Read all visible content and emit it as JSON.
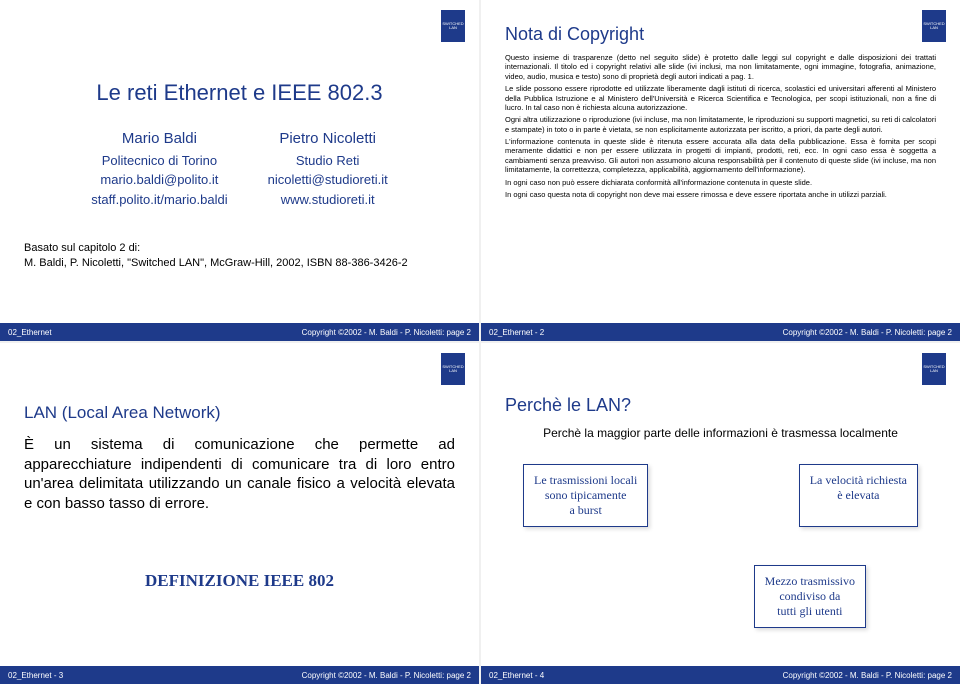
{
  "badge_text": "SWITCHED LAN",
  "footer_copyright": "Copyright ©2002 - M. Baldi - P. Nicoletti: page 2",
  "slide1": {
    "footer_left": "02_Ethernet",
    "title": "Le reti Ethernet e IEEE 802.3",
    "author1": {
      "name": "Mario Baldi",
      "l1": "Politecnico di Torino",
      "l2": "mario.baldi@polito.it",
      "l3": "staff.polito.it/mario.baldi"
    },
    "author2": {
      "name": "Pietro Nicoletti",
      "l1": "Studio Reti",
      "l2": "nicoletti@studioreti.it",
      "l3": "www.studioreti.it"
    },
    "basato_l1": "Basato sul capitolo  2 di:",
    "basato_l2": "M. Baldi, P. Nicoletti, \"Switched LAN\", McGraw-Hill, 2002, ISBN 88-386-3426-2"
  },
  "slide2": {
    "footer_left": "02_Ethernet - 2",
    "title": "Nota di Copyright",
    "p1": "Questo insieme di trasparenze (detto nel seguito slide) è protetto dalle leggi sul copyright e dalle disposizioni dei trattati internazionali. Il titolo ed i copyright relativi alle slide (ivi inclusi, ma non limitatamente, ogni immagine, fotografia, animazione, video, audio, musica e testo) sono di proprietà degli autori indicati a pag. 1.",
    "p2": "Le slide possono essere riprodotte ed utilizzate liberamente dagli istituti di ricerca, scolastici ed universitari afferenti al Ministero della Pubblica Istruzione e al Ministero dell'Università e Ricerca Scientifica e Tecnologica, per scopi istituzionali, non a fine di lucro. In tal caso non è richiesta alcuna autorizzazione.",
    "p3": "Ogni altra utilizzazione o riproduzione (ivi incluse, ma non limitatamente, le riproduzioni su supporti magnetici, su reti di calcolatori e stampate) in toto o in parte è vietata, se non esplicitamente autorizzata per iscritto, a priori, da parte degli autori.",
    "p4": "L'informazione contenuta in queste slide è ritenuta essere accurata alla data della pubblicazione. Essa è fornita per scopi meramente didattici e non per essere utilizzata in progetti di impianti, prodotti, reti, ecc. In ogni caso essa è soggetta a cambiamenti senza preavviso. Gli autori non assumono alcuna responsabilità per il contenuto di queste slide (ivi incluse, ma non limitatamente, la correttezza, completezza, applicabilità, aggiornamento dell'informazione).",
    "p5": "In ogni caso non può essere dichiarata conformità all'informazione contenuta in queste slide.",
    "p6": "In ogni caso questa nota di copyright non deve mai essere rimossa e deve essere riportata anche in utilizzi parziali."
  },
  "slide3": {
    "footer_left": "02_Ethernet - 3",
    "title": "LAN (Local Area Network)",
    "body": "È un sistema di comunicazione che permette ad apparecchiature indipendenti di comunicare tra di loro entro un'area delimitata utilizzando un canale fisico a velocità elevata e con basso tasso di errore.",
    "def": "DEFINIZIONE IEEE 802"
  },
  "slide4": {
    "footer_left": "02_Ethernet - 4",
    "title": "Perchè le LAN?",
    "sub": "Perchè la maggior parte delle informazioni è trasmessa localmente",
    "box1_l1": "Le trasmissioni locali",
    "box1_l2": "sono tipicamente",
    "box1_l3": "a burst",
    "box2_l1": "La velocità richiesta",
    "box2_l2": "è elevata",
    "box3_l1": "Mezzo trasmissivo",
    "box3_l2": "condiviso da",
    "box3_l3": "tutti gli utenti"
  }
}
